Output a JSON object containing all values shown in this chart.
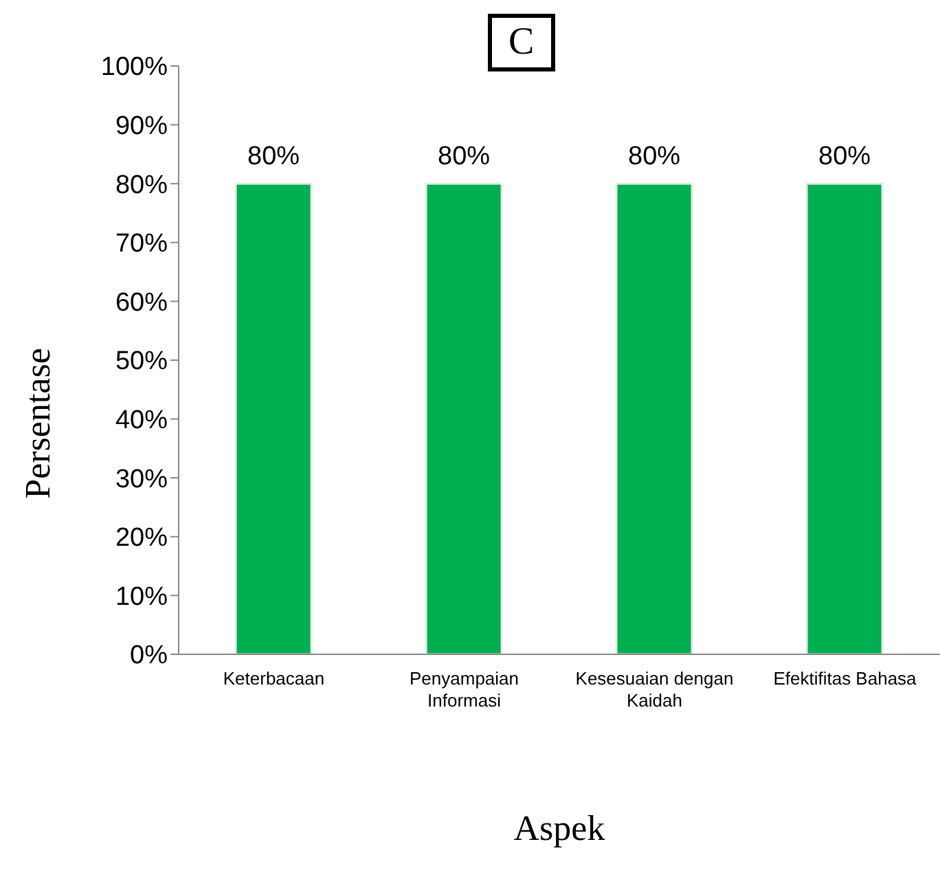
{
  "chart_data": {
    "type": "bar",
    "title": "C",
    "xlabel": "Aspek",
    "ylabel": "Persentase",
    "categories": [
      "Keterbacaan",
      "Penyampaian Informasi",
      "Kesesuaian dengan Kaidah",
      "Efektifitas Bahasa"
    ],
    "values": [
      80,
      80,
      80,
      80
    ],
    "value_labels": [
      "80%",
      "80%",
      "80%",
      "80%"
    ],
    "color": "#00b050",
    "ylim": [
      0,
      100
    ],
    "yticks": [
      {
        "value": 0,
        "label": "0%"
      },
      {
        "value": 10,
        "label": "10%"
      },
      {
        "value": 20,
        "label": "20%"
      },
      {
        "value": 30,
        "label": "30%"
      },
      {
        "value": 40,
        "label": "40%"
      },
      {
        "value": 50,
        "label": "50%"
      },
      {
        "value": 60,
        "label": "60%"
      },
      {
        "value": 70,
        "label": "70%"
      },
      {
        "value": 80,
        "label": "80%"
      },
      {
        "value": 90,
        "label": "90%"
      },
      {
        "value": 100,
        "label": "100%"
      }
    ],
    "grid": false,
    "legend": false
  }
}
